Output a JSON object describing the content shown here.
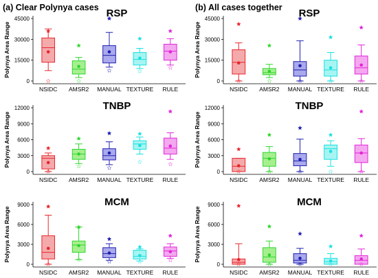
{
  "panels": [
    {
      "heading": "(a) Clear Polynya cases"
    },
    {
      "heading": "(b) All cases together"
    }
  ],
  "colors": {
    "NSIDC": {
      "stroke": "#e8262b",
      "fill": "#f4a9ab"
    },
    "AMSR2": {
      "stroke": "#2dd62d",
      "fill": "#a6ef8f"
    },
    "MANUAL": {
      "stroke": "#1f1fb0",
      "fill": "#a9a9ec"
    },
    "TEXTURE": {
      "stroke": "#17e0e0",
      "fill": "#a6f5f2"
    },
    "RULE": {
      "stroke": "#e324d8",
      "fill": "#f3a8ef"
    }
  },
  "chart_data": [
    {
      "type": "box",
      "panel": 0,
      "title": "RSP",
      "ylabel": "Polynya Area Range",
      "ylim": [
        0,
        45000
      ],
      "yticks": [
        0,
        15000,
        30000,
        45000
      ],
      "categories": [
        "NSIDC",
        "AMSR2",
        "MANUAL",
        "TEXTURE",
        "RULE"
      ],
      "boxes": [
        {
          "min": 7500,
          "q1": 13500,
          "median": 24000,
          "q3": 31000,
          "max": 37500,
          "mean": 21000,
          "outlier_high": 36000,
          "outlier_low": 0
        },
        {
          "min": 2500,
          "q1": 5000,
          "median": 8500,
          "q3": 14500,
          "max": 17000,
          "mean": 10500,
          "outlier_high": 25500,
          "outlier_low": 0
        },
        {
          "min": 10000,
          "q1": 13000,
          "median": 18500,
          "q3": 25500,
          "max": 35000,
          "mean": 21000,
          "outlier_high": 45000,
          "outlier_low": 7500
        },
        {
          "min": 9000,
          "q1": 11500,
          "median": 15500,
          "q3": 20500,
          "max": 23500,
          "mean": 16500,
          "outlier_high": 30500,
          "outlier_low": 7000
        },
        {
          "min": 11500,
          "q1": 15000,
          "median": 21500,
          "q3": 26500,
          "max": 30500,
          "mean": 21000,
          "outlier_high": 36000,
          "outlier_low": 9500
        }
      ]
    },
    {
      "type": "box",
      "panel": 0,
      "title": "TNBP",
      "ylabel": "Polynya Area Range",
      "ylim": [
        0,
        12000
      ],
      "yticks": [
        0,
        3000,
        6000,
        9000,
        12000
      ],
      "categories": [
        "NSIDC",
        "AMSR2",
        "MANUAL",
        "TEXTURE",
        "RULE"
      ],
      "boxes": [
        {
          "min": 0,
          "q1": 500,
          "median": 2500,
          "q3": 3000,
          "max": 3500,
          "mean": 1700,
          "outlier_high": 4400,
          "outlier_low": 0
        },
        {
          "min": 1500,
          "q1": 2300,
          "median": 3300,
          "q3": 4200,
          "max": 5200,
          "mean": 3300,
          "outlier_high": 6200,
          "outlier_low": 1000
        },
        {
          "min": 1300,
          "q1": 2200,
          "median": 3000,
          "q3": 4300,
          "max": 5600,
          "mean": 3500,
          "outlier_high": 7200,
          "outlier_low": 700
        },
        {
          "min": 3300,
          "q1": 4200,
          "median": 5200,
          "q3": 5800,
          "max": 6500,
          "mean": 4900,
          "outlier_high": 7100,
          "outlier_low": 1800
        },
        {
          "min": 2300,
          "q1": 3300,
          "median": 4400,
          "q3": 6300,
          "max": 7300,
          "mean": 4800,
          "outlier_high": 11300,
          "outlier_low": 1400
        }
      ]
    },
    {
      "type": "box",
      "panel": 0,
      "title": "MCM",
      "ylabel": "Polynya Area Range",
      "ylim": [
        0,
        9000
      ],
      "yticks": [
        0,
        3000,
        6000,
        9000
      ],
      "categories": [
        "NSIDC",
        "AMSR2",
        "MANUAL",
        "TEXTURE",
        "RULE"
      ],
      "boxes": [
        {
          "min": 0,
          "q1": 800,
          "median": 1800,
          "q3": 4300,
          "max": 7400,
          "mean": 2400,
          "outlier_high": 8700,
          "outlier_low": 0
        },
        {
          "min": 700,
          "q1": 1800,
          "median": 2900,
          "q3": 3500,
          "max": 5600,
          "mean": 2800,
          "outlier_high": 5600,
          "outlier_low": 700
        },
        {
          "min": 600,
          "q1": 1000,
          "median": 1600,
          "q3": 2500,
          "max": 3100,
          "mean": 1700,
          "outlier_high": 3800,
          "outlier_low": 400
        },
        {
          "min": 500,
          "q1": 800,
          "median": 1200,
          "q3": 2100,
          "max": 2300,
          "mean": 1300,
          "outlier_high": 2600,
          "outlier_low": 400
        },
        {
          "min": 900,
          "q1": 1200,
          "median": 2000,
          "q3": 2600,
          "max": 3100,
          "mean": 1900,
          "outlier_high": 4300,
          "outlier_low": 600
        }
      ]
    },
    {
      "type": "box",
      "panel": 1,
      "title": "RSP",
      "ylabel": "Polynya Area Range",
      "ylim": [
        0,
        45000
      ],
      "yticks": [
        0,
        15000,
        30000,
        45000
      ],
      "categories": [
        "NSIDC",
        "AMSR2",
        "MANUAL",
        "TEXTURE",
        "RULE"
      ],
      "boxes": [
        {
          "min": 0,
          "q1": 5000,
          "median": 13500,
          "q3": 22500,
          "max": 27500,
          "mean": 13000,
          "outlier_high": 41000,
          "outlier_low": 0
        },
        {
          "min": 2500,
          "q1": 4500,
          "median": 6000,
          "q3": 9000,
          "max": 12000,
          "mean": 7000,
          "outlier_high": 25500,
          "outlier_low": 0
        },
        {
          "min": 0,
          "q1": 3500,
          "median": 8000,
          "q3": 14000,
          "max": 29000,
          "mean": 11000,
          "outlier_high": 45000,
          "outlier_low": 0
        },
        {
          "min": 0,
          "q1": 3500,
          "median": 8000,
          "q3": 15000,
          "max": 20500,
          "mean": 9500,
          "outlier_high": 31500,
          "outlier_low": 0
        },
        {
          "min": 0,
          "q1": 5000,
          "median": 9500,
          "q3": 18000,
          "max": 26000,
          "mean": 11500,
          "outlier_high": 38500,
          "outlier_low": 0
        }
      ]
    },
    {
      "type": "box",
      "panel": 1,
      "title": "TNBP",
      "ylabel": "Polynya Area Range",
      "ylim": [
        0,
        12000
      ],
      "yticks": [
        0,
        3000,
        6000,
        9000,
        12000
      ],
      "categories": [
        "NSIDC",
        "AMSR2",
        "MANUAL",
        "TEXTURE",
        "RULE"
      ],
      "boxes": [
        {
          "min": 0,
          "q1": 0,
          "median": 1000,
          "q3": 2500,
          "max": 2500,
          "mean": 1100,
          "outlier_high": 4200,
          "outlier_low": 0
        },
        {
          "min": 0,
          "q1": 1000,
          "median": 2500,
          "q3": 3600,
          "max": 4700,
          "mean": 2400,
          "outlier_high": 6900,
          "outlier_low": 0
        },
        {
          "min": 0,
          "q1": 1100,
          "median": 2000,
          "q3": 3400,
          "max": 6100,
          "mean": 2300,
          "outlier_high": 8200,
          "outlier_low": 0
        },
        {
          "min": 1000,
          "q1": 2300,
          "median": 4300,
          "q3": 5000,
          "max": 5800,
          "mean": 3800,
          "outlier_high": 6900,
          "outlier_low": 0
        },
        {
          "min": 0,
          "q1": 1700,
          "median": 3500,
          "q3": 5000,
          "max": 6200,
          "mean": 3500,
          "outlier_high": 11300,
          "outlier_low": 0
        }
      ]
    },
    {
      "type": "box",
      "panel": 1,
      "title": "MCM",
      "ylabel": "Polynya Area Range",
      "ylim": [
        0,
        9000
      ],
      "yticks": [
        0,
        3000,
        6000,
        9000
      ],
      "categories": [
        "NSIDC",
        "AMSR2",
        "MANUAL",
        "TEXTURE",
        "RULE"
      ],
      "boxes": [
        {
          "min": 0,
          "q1": 0,
          "median": 300,
          "q3": 800,
          "max": 3100,
          "mean": 700,
          "outlier_high": 8800,
          "outlier_low": 0
        },
        {
          "min": 0,
          "q1": 300,
          "median": 1100,
          "q3": 2500,
          "max": 3500,
          "mean": 1400,
          "outlier_high": 5700,
          "outlier_low": 0
        },
        {
          "min": 0,
          "q1": 200,
          "median": 600,
          "q3": 1600,
          "max": 2400,
          "mean": 900,
          "outlier_high": 4600,
          "outlier_low": 0
        },
        {
          "min": 0,
          "q1": 0,
          "median": 400,
          "q3": 900,
          "max": 1600,
          "mean": 500,
          "outlier_high": 2700,
          "outlier_low": 0
        },
        {
          "min": 0,
          "q1": 0,
          "median": 600,
          "q3": 1300,
          "max": 2300,
          "mean": 800,
          "outlier_high": 4300,
          "outlier_low": 0
        }
      ]
    }
  ]
}
